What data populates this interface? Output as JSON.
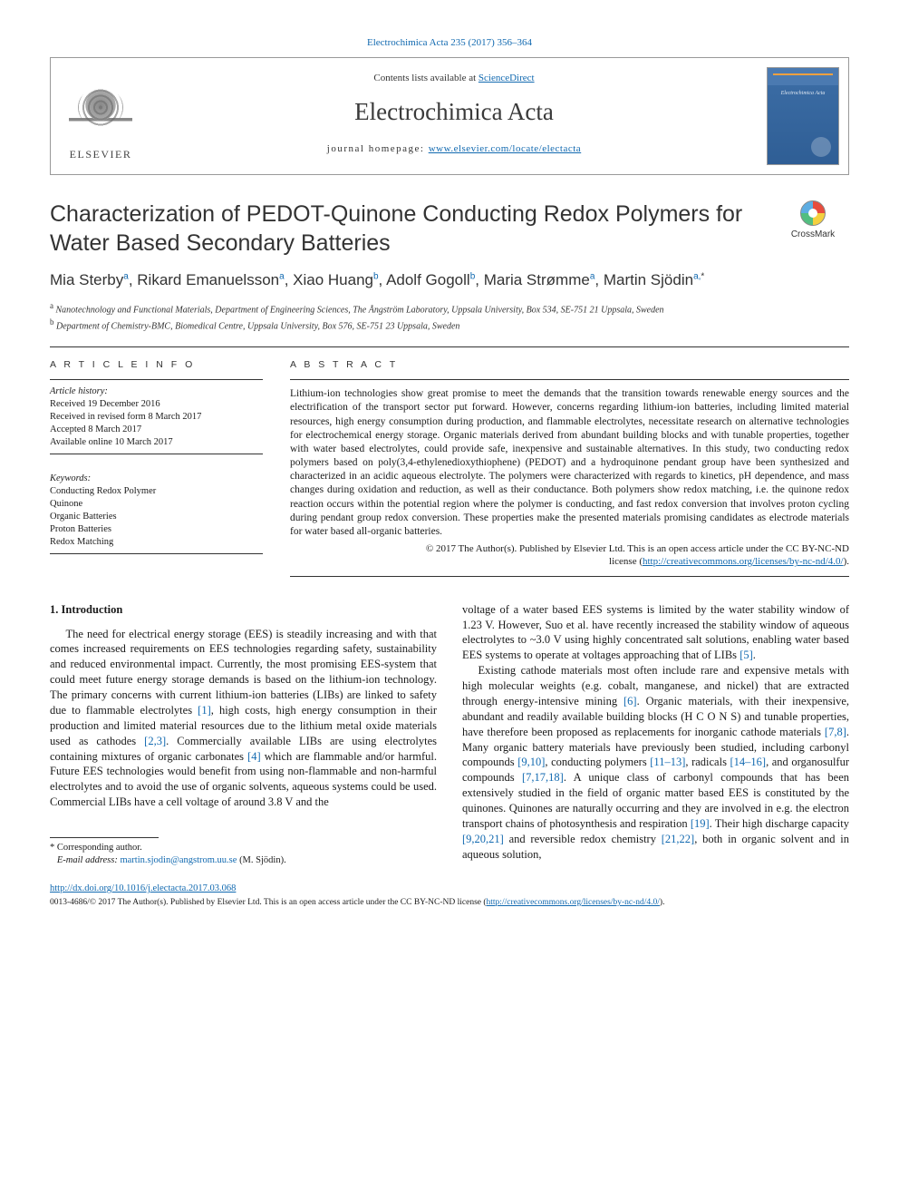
{
  "top_link": "Electrochimica Acta 235 (2017) 356–364",
  "header": {
    "contents_prefix": "Contents lists available at ",
    "contents_link": "ScienceDirect",
    "journal_name": "Electrochimica Acta",
    "homepage_prefix": "journal homepage: ",
    "homepage_url": "www.elsevier.com/locate/electacta",
    "elsevier_word": "ELSEVIER",
    "cover_title": "Electrochimica Acta"
  },
  "title": "Characterization of PEDOT-Quinone Conducting Redox Polymers for Water Based Secondary Batteries",
  "crossmark_label": "CrossMark",
  "authors": {
    "a1": "Mia Sterby",
    "a1_sup": "a",
    "a2": "Rikard Emanuelsson",
    "a2_sup": "a",
    "a3": "Xiao Huang",
    "a3_sup": "b",
    "a4": "Adolf Gogoll",
    "a4_sup": "b",
    "a5": "Maria Strømme",
    "a5_sup": "a",
    "a6": "Martin Sjödin",
    "a6_sup": "a,",
    "a6_star": "*"
  },
  "affiliations": {
    "a": "Nanotechnology and Functional Materials, Department of Engineering Sciences, The Ångström Laboratory, Uppsala University, Box 534, SE-751 21 Uppsala, Sweden",
    "b": "Department of Chemistry-BMC, Biomedical Centre, Uppsala University, Box 576, SE-751 23 Uppsala, Sweden"
  },
  "info": {
    "head": "A R T I C L E  I N F O",
    "history_label": "Article history:",
    "h1": "Received 19 December 2016",
    "h2": "Received in revised form 8 March 2017",
    "h3": "Accepted 8 March 2017",
    "h4": "Available online 10 March 2017",
    "kw_label": "Keywords:",
    "k1": "Conducting Redox Polymer",
    "k2": "Quinone",
    "k3": "Organic Batteries",
    "k4": "Proton Batteries",
    "k5": "Redox Matching"
  },
  "abstract": {
    "head": "A B S T R A C T",
    "body": "Lithium-ion technologies show great promise to meet the demands that the transition towards renewable energy sources and the electrification of the transport sector put forward. However, concerns regarding lithium-ion batteries, including limited material resources, high energy consumption during production, and flammable electrolytes, necessitate research on alternative technologies for electrochemical energy storage. Organic materials derived from abundant building blocks and with tunable properties, together with water based electrolytes, could provide safe, inexpensive and sustainable alternatives. In this study, two conducting redox polymers based on poly(3,4-ethylenedioxythiophene) (PEDOT) and a hydroquinone pendant group have been synthesized and characterized in an acidic aqueous electrolyte. The polymers were characterized with regards to kinetics, pH dependence, and mass changes during oxidation and reduction, as well as their conductance. Both polymers show redox matching, i.e. the quinone redox reaction occurs within the potential region where the polymer is conducting, and fast redox conversion that involves proton cycling during pendant group redox conversion. These properties make the presented materials promising candidates as electrode materials for water based all-organic batteries.",
    "copyright1": "© 2017 The Author(s). Published by Elsevier Ltd. This is an open access article under the CC BY-NC-ND",
    "copyright2_prefix": "license (",
    "copyright2_link": "http://creativecommons.org/licenses/by-nc-nd/4.0/",
    "copyright2_suffix": ")."
  },
  "intro": {
    "heading": "1. Introduction",
    "p1_a": "The need for electrical energy storage (EES) is steadily increasing and with that comes increased requirements on EES technologies regarding safety, sustainability and reduced environmental impact. Currently, the most promising EES-system that could meet future energy storage demands is based on the lithium-ion technology. The primary concerns with current lithium-ion batteries (LIBs) are linked to safety due to flammable electrolytes ",
    "r1": "[1]",
    "p1_b": ", high costs, high energy consumption in their production and limited material resources due to the lithium metal oxide materials used as cathodes ",
    "r2": "[2,3]",
    "p1_c": ". Commercially available LIBs are using electrolytes containing mixtures of organic carbonates ",
    "r3": "[4]",
    "p1_d": " which are flammable and/or harmful. Future EES technologies would benefit from using non-flammable and non-harmful electrolytes and to avoid the use of organic solvents, aqueous systems could be used. Commercial LIBs have a cell voltage of around 3.8 V and the",
    "p2_a": "voltage of a water based EES systems is limited by the water stability window of 1.23 V. However, Suo et al. have recently increased the stability window of aqueous electrolytes to ~3.0 V using highly concentrated salt solutions, enabling water based EES systems to operate at voltages approaching that of LIBs ",
    "r4": "[5]",
    "p2_b": ".",
    "p3_a": "Existing cathode materials most often include rare and expensive metals with high molecular weights (e.g. cobalt, manganese, and nickel) that are extracted through energy-intensive mining ",
    "r5": "[6]",
    "p3_b": ". Organic materials, with their inexpensive, abundant and readily available building blocks (H C O N S) and tunable properties, have therefore been proposed as replacements for inorganic cathode materials ",
    "r6": "[7,8]",
    "p3_c": ". Many organic battery materials have previously been studied, including carbonyl compounds ",
    "r7": "[9,10]",
    "p3_d": ", conducting polymers ",
    "r8": "[11–13]",
    "p3_e": ", radicals ",
    "r9": "[14–16]",
    "p3_f": ", and organosulfur compounds ",
    "r10": "[7,17,18]",
    "p3_g": ". A unique class of carbonyl compounds that has been extensively studied in the field of organic matter based EES is constituted by the quinones. Quinones are naturally occurring and they are involved in e.g. the electron transport chains of photosynthesis and respiration ",
    "r11": "[19]",
    "p3_h": ". Their high discharge capacity ",
    "r12": "[9,20,21]",
    "p3_i": " and reversible redox chemistry ",
    "r13": "[21,22]",
    "p3_j": ", both in organic solvent and in aqueous solution,"
  },
  "footnote": {
    "star": "*",
    "corr": " Corresponding author.",
    "email_label": "E-mail address: ",
    "email": "martin.sjodin@angstrom.uu.se",
    "email_suffix": " (M. Sjödin)."
  },
  "doi": {
    "url": "http://dx.doi.org/10.1016/j.electacta.2017.03.068"
  },
  "bottom": {
    "text_a": "0013-4686/© 2017 The Author(s). Published by Elsevier Ltd. This is an open access article under the CC BY-NC-ND license (",
    "link": "http://creativecommons.org/licenses/by-nc-nd/4.0/",
    "text_b": ")."
  },
  "colors": {
    "link": "#1169b0",
    "text": "#1a1a1a",
    "rule": "#333333"
  }
}
